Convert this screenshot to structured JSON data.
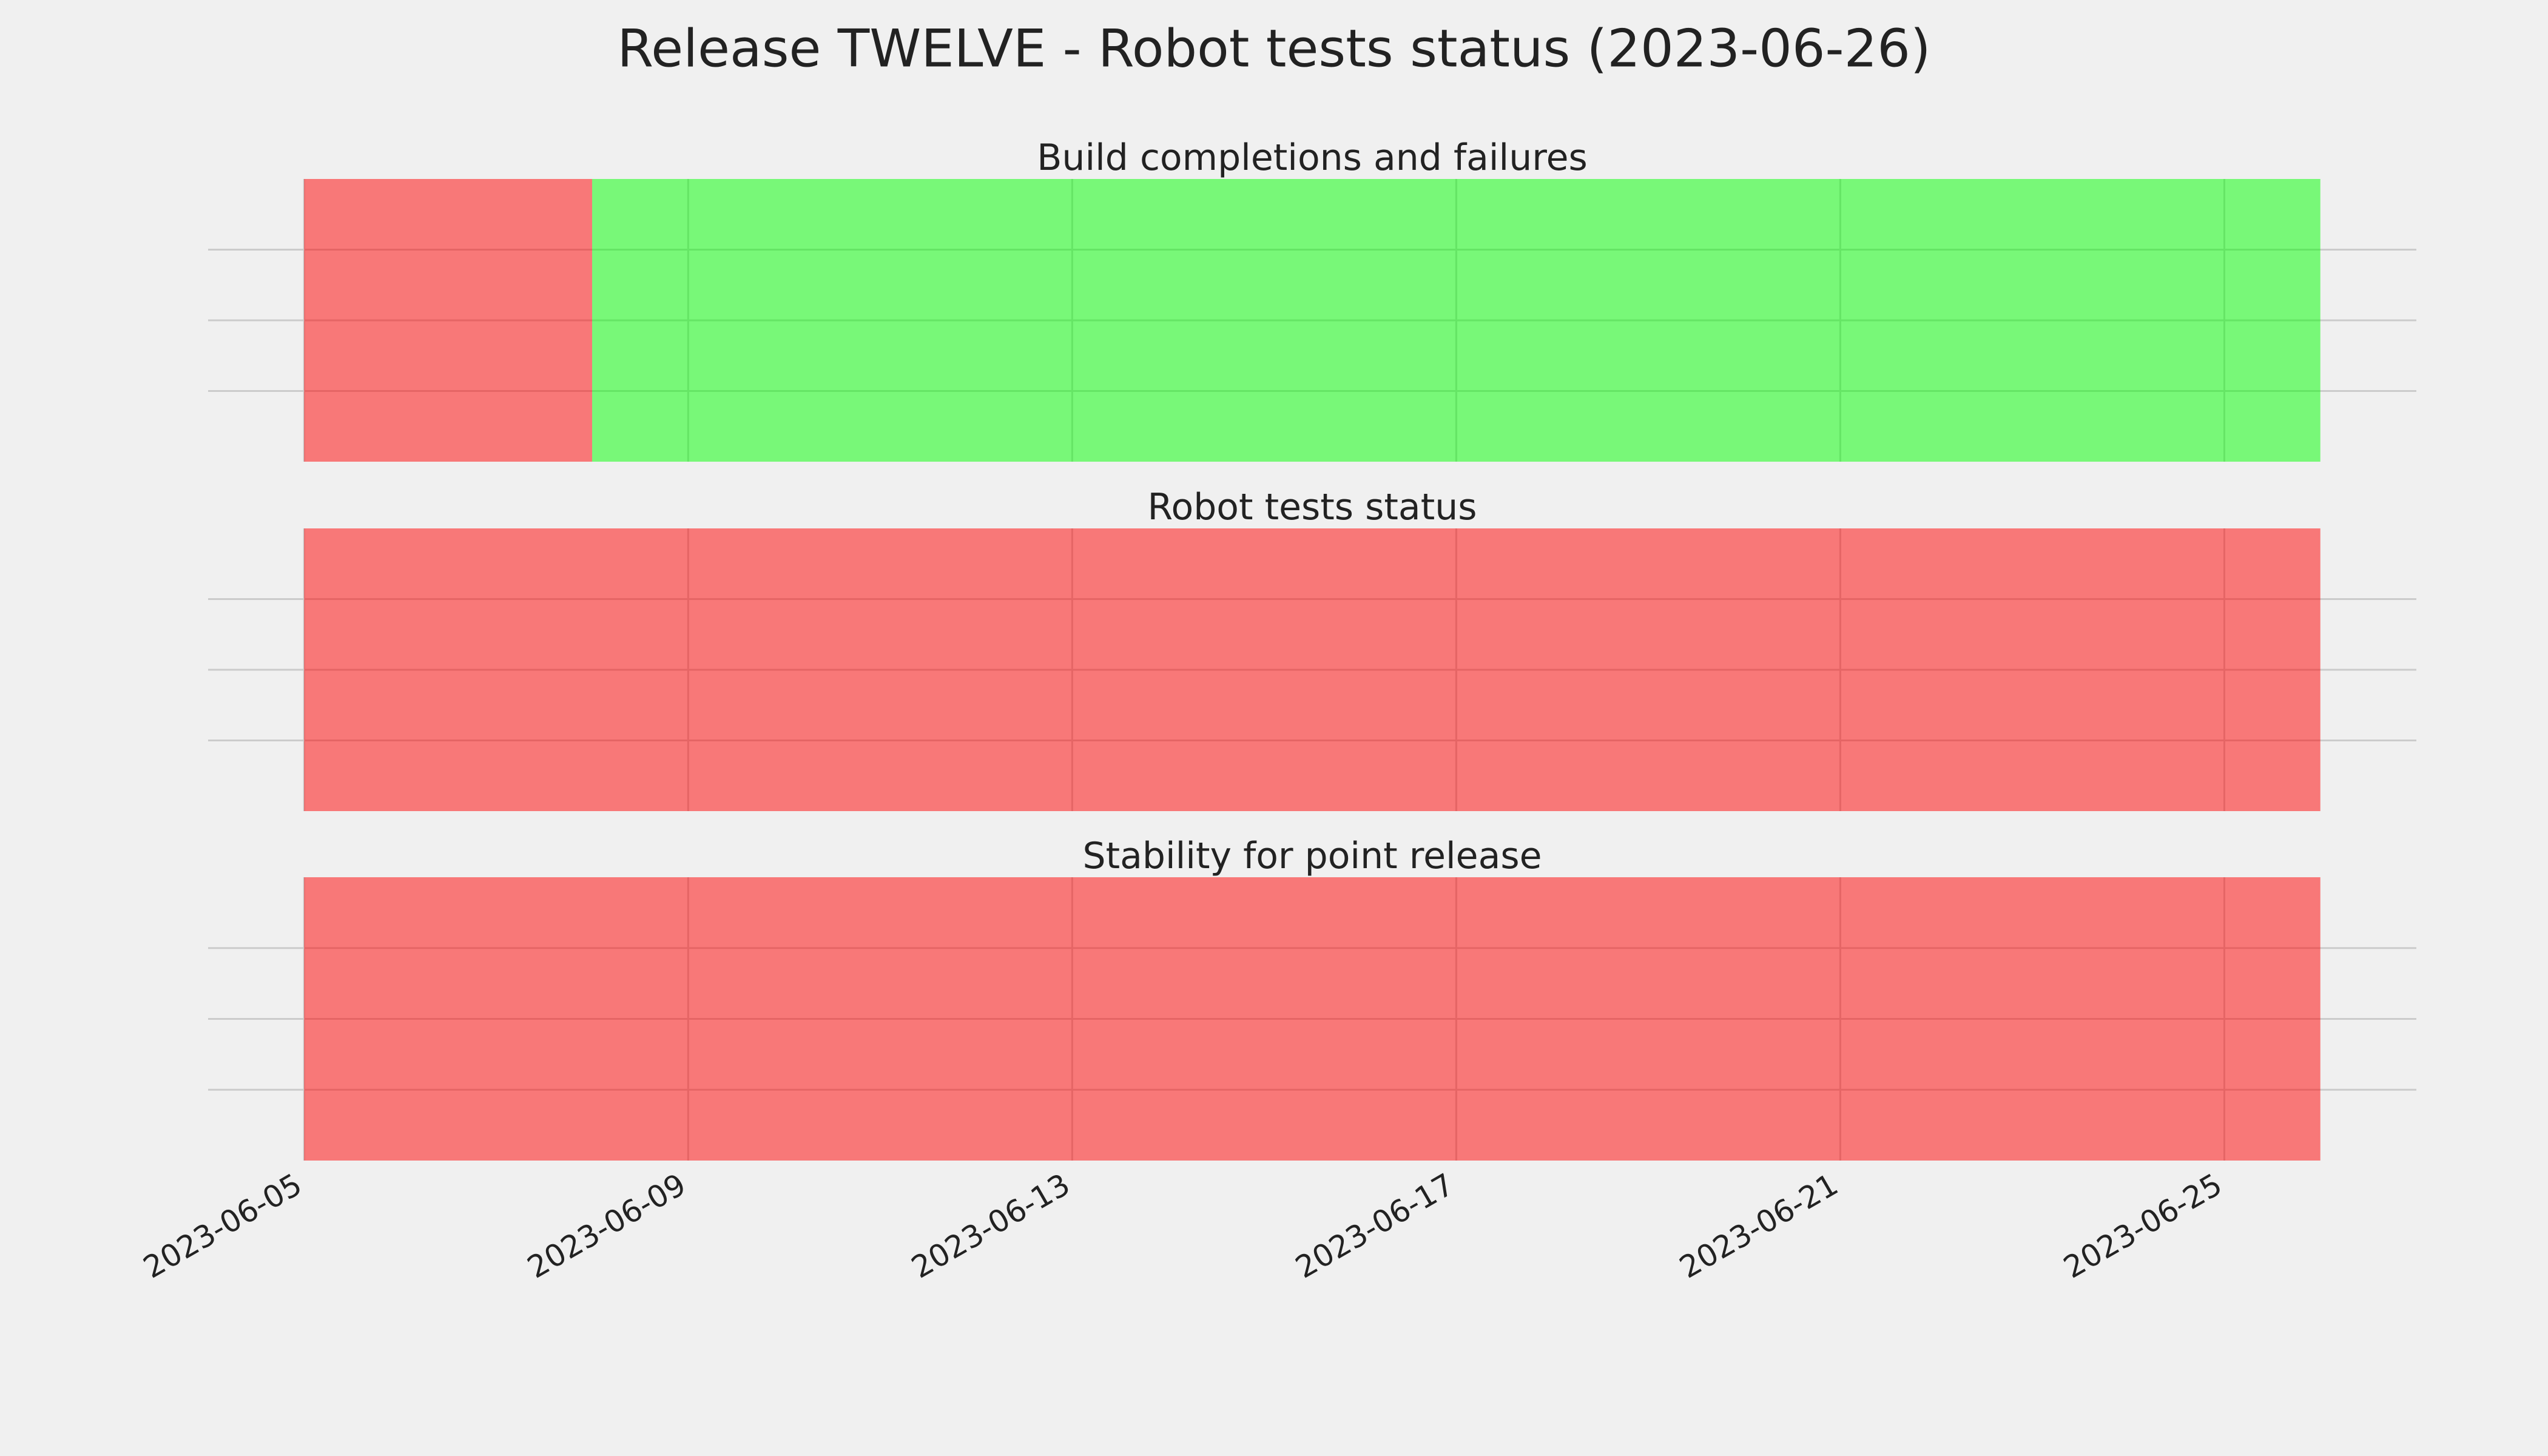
{
  "title": "Release TWELVE - Robot tests status (2023-06-26)",
  "chart_data": [
    {
      "type": "timeline",
      "title": "Build completions and failures",
      "spans": [
        {
          "start": "2023-06-05",
          "end": "2023-06-08",
          "color": "#ff0000",
          "alpha": 0.5
        },
        {
          "start": "2023-06-08",
          "end": "2023-06-26",
          "color": "#00ff00",
          "alpha": 0.5
        }
      ],
      "xlim": [
        "2023-06-04",
        "2023-06-27"
      ],
      "xticks": [
        "2023-06-05",
        "2023-06-09",
        "2023-06-13",
        "2023-06-17",
        "2023-06-21",
        "2023-06-25"
      ],
      "ylim": [
        0,
        1
      ],
      "yticks": [
        0.25,
        0.5,
        0.75
      ],
      "grid": true
    },
    {
      "type": "timeline",
      "title": "Robot tests status",
      "spans": [
        {
          "start": "2023-06-05",
          "end": "2023-06-26",
          "color": "#ff0000",
          "alpha": 0.5
        }
      ],
      "xlim": [
        "2023-06-04",
        "2023-06-27"
      ],
      "xticks": [
        "2023-06-05",
        "2023-06-09",
        "2023-06-13",
        "2023-06-17",
        "2023-06-21",
        "2023-06-25"
      ],
      "ylim": [
        0,
        1
      ],
      "yticks": [
        0.25,
        0.5,
        0.75
      ],
      "grid": true
    },
    {
      "type": "timeline",
      "title": "Stability for point release",
      "spans": [
        {
          "start": "2023-06-05",
          "end": "2023-06-26",
          "color": "#ff0000",
          "alpha": 0.5
        }
      ],
      "xlim": [
        "2023-06-04",
        "2023-06-27"
      ],
      "xticks": [
        "2023-06-05",
        "2023-06-09",
        "2023-06-13",
        "2023-06-17",
        "2023-06-21",
        "2023-06-25"
      ],
      "ylim": [
        0,
        1
      ],
      "yticks": [
        0.25,
        0.5,
        0.75
      ],
      "grid": true
    }
  ]
}
